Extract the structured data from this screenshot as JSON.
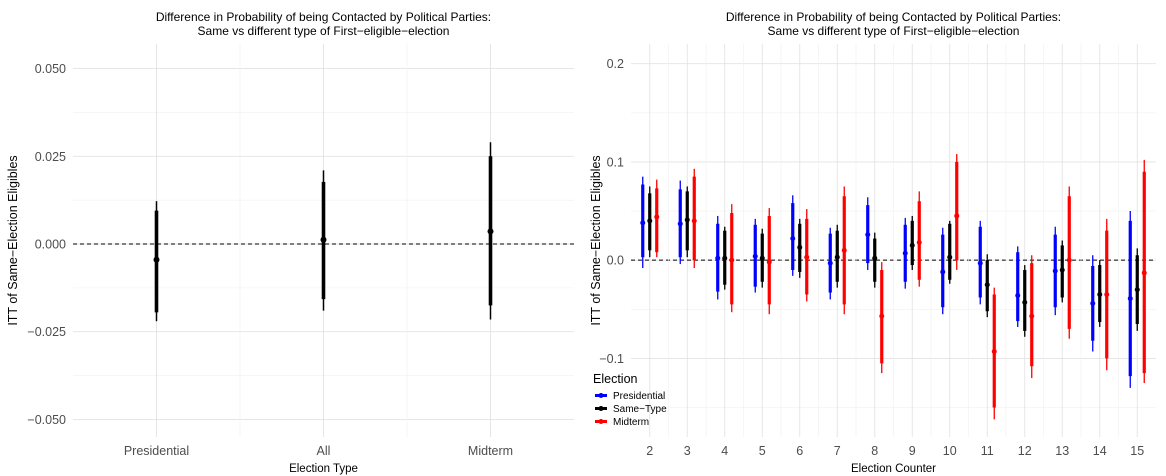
{
  "chart_data": [
    {
      "type": "errorbar",
      "title": [
        "Difference in Probability of being Contacted by Political Parties:",
        "Same vs different type of First−eligible−election"
      ],
      "xlabel": "Election Type",
      "ylabel": "ITT of Same−Election Eligibles",
      "categories": [
        "Presidential",
        "All",
        "Midterm"
      ],
      "ylim": [
        -0.055,
        0.057
      ],
      "yticks": [
        -0.05,
        -0.025,
        0.0,
        0.025,
        0.05
      ],
      "ytick_labels": [
        "−0.050",
        "−0.025",
        "0.000",
        "0.025",
        "0.050"
      ],
      "reference_line": 0,
      "color": "#000000",
      "points": [
        {
          "x": "Presidential",
          "estimate": -0.0045,
          "ci90": [
            -0.0195,
            0.0095
          ],
          "ci95": [
            -0.022,
            0.0122
          ]
        },
        {
          "x": "All",
          "estimate": 0.0012,
          "ci90": [
            -0.0157,
            0.0177
          ],
          "ci95": [
            -0.019,
            0.021
          ]
        },
        {
          "x": "Midterm",
          "estimate": 0.0036,
          "ci90": [
            -0.0175,
            0.025
          ],
          "ci95": [
            -0.0215,
            0.029
          ]
        }
      ],
      "grid": true
    },
    {
      "type": "errorbar",
      "title": [
        "Difference in Probability of being Contacted by Political Parties:",
        "Same vs different type of First−eligible−election"
      ],
      "xlabel": "Election Counter",
      "ylabel": "ITT of Same−Election Eligibles",
      "categories": [
        "2",
        "3",
        "4",
        "5",
        "6",
        "7",
        "8",
        "9",
        "10",
        "11",
        "12",
        "13",
        "14",
        "15"
      ],
      "ylim": [
        -0.18,
        0.22
      ],
      "yticks": [
        -0.1,
        0.0,
        0.1,
        0.2
      ],
      "ytick_labels": [
        "−0.1",
        "0.0",
        "0.1",
        "0.2"
      ],
      "reference_line": 0,
      "grid": true,
      "legend": {
        "title": "Election",
        "position": "bottom-left"
      },
      "series": [
        {
          "name": "Presidential",
          "color": "#0000ff",
          "estimate": [
            0.038,
            0.037,
            0.002,
            0.004,
            0.022,
            -0.003,
            0.026,
            0.007,
            -0.012,
            -0.003,
            -0.036,
            -0.011,
            -0.044,
            -0.039
          ],
          "ci90": [
            [
              0.003,
              0.077
            ],
            [
              0.003,
              0.072
            ],
            [
              -0.032,
              0.037
            ],
            [
              -0.027,
              0.036
            ],
            [
              -0.01,
              0.058
            ],
            [
              -0.033,
              0.027
            ],
            [
              -0.003,
              0.056
            ],
            [
              -0.022,
              0.036
            ],
            [
              -0.048,
              0.026
            ],
            [
              -0.038,
              0.034
            ],
            [
              -0.062,
              0.008
            ],
            [
              -0.048,
              0.026
            ],
            [
              -0.082,
              -0.006
            ],
            [
              -0.118,
              0.04
            ]
          ],
          "ci95": [
            [
              -0.008,
              0.085
            ],
            [
              -0.004,
              0.081
            ],
            [
              -0.04,
              0.045
            ],
            [
              -0.033,
              0.042
            ],
            [
              -0.016,
              0.066
            ],
            [
              -0.04,
              0.033
            ],
            [
              -0.01,
              0.064
            ],
            [
              -0.029,
              0.043
            ],
            [
              -0.055,
              0.033
            ],
            [
              -0.045,
              0.04
            ],
            [
              -0.068,
              0.014
            ],
            [
              -0.056,
              0.034
            ],
            [
              -0.093,
              0.005
            ],
            [
              -0.13,
              0.05
            ]
          ]
        },
        {
          "name": "Same−Type",
          "color": "#000000",
          "estimate": [
            0.04,
            0.041,
            0.002,
            0.002,
            0.013,
            0.003,
            0.002,
            0.015,
            0.003,
            -0.025,
            -0.043,
            -0.01,
            -0.035,
            -0.03
          ],
          "ci90": [
            [
              0.01,
              0.068
            ],
            [
              0.01,
              0.07
            ],
            [
              -0.025,
              0.03
            ],
            [
              -0.022,
              0.027
            ],
            [
              -0.012,
              0.037
            ],
            [
              -0.022,
              0.03
            ],
            [
              -0.022,
              0.022
            ],
            [
              -0.005,
              0.04
            ],
            [
              -0.02,
              0.037
            ],
            [
              -0.052,
              0.0
            ],
            [
              -0.072,
              -0.01
            ],
            [
              -0.038,
              0.015
            ],
            [
              -0.063,
              -0.005
            ],
            [
              -0.065,
              0.005
            ]
          ],
          "ci95": [
            [
              0.003,
              0.075
            ],
            [
              0.003,
              0.075
            ],
            [
              -0.03,
              0.034
            ],
            [
              -0.028,
              0.032
            ],
            [
              -0.018,
              0.042
            ],
            [
              -0.028,
              0.036
            ],
            [
              -0.028,
              0.028
            ],
            [
              -0.01,
              0.045
            ],
            [
              -0.024,
              0.04
            ],
            [
              -0.058,
              0.006
            ],
            [
              -0.078,
              -0.005
            ],
            [
              -0.043,
              0.02
            ],
            [
              -0.068,
              0.0
            ],
            [
              -0.072,
              0.012
            ]
          ]
        },
        {
          "name": "Midterm",
          "color": "#ff0000",
          "estimate": [
            0.044,
            0.04,
            0.0,
            -0.002,
            0.003,
            0.01,
            -0.057,
            0.018,
            0.045,
            -0.093,
            -0.057,
            0.0,
            -0.035,
            -0.013
          ],
          "ci90": [
            [
              0.008,
              0.073
            ],
            [
              0.0,
              0.085
            ],
            [
              -0.045,
              0.048
            ],
            [
              -0.045,
              0.045
            ],
            [
              -0.035,
              0.042
            ],
            [
              -0.045,
              0.065
            ],
            [
              -0.105,
              -0.01
            ],
            [
              -0.02,
              0.06
            ],
            [
              0.0,
              0.1
            ],
            [
              -0.15,
              -0.035
            ],
            [
              -0.108,
              -0.003
            ],
            [
              -0.07,
              0.065
            ],
            [
              -0.1,
              0.03
            ],
            [
              -0.115,
              0.09
            ]
          ],
          "ci95": [
            [
              0.003,
              0.082
            ],
            [
              -0.008,
              0.093
            ],
            [
              -0.053,
              0.057
            ],
            [
              -0.055,
              0.053
            ],
            [
              -0.042,
              0.052
            ],
            [
              -0.055,
              0.075
            ],
            [
              -0.115,
              -0.002
            ],
            [
              -0.027,
              0.07
            ],
            [
              -0.01,
              0.108
            ],
            [
              -0.162,
              -0.028
            ],
            [
              -0.12,
              0.005
            ],
            [
              -0.08,
              0.075
            ],
            [
              -0.112,
              0.042
            ],
            [
              -0.125,
              0.102
            ]
          ]
        }
      ]
    }
  ]
}
